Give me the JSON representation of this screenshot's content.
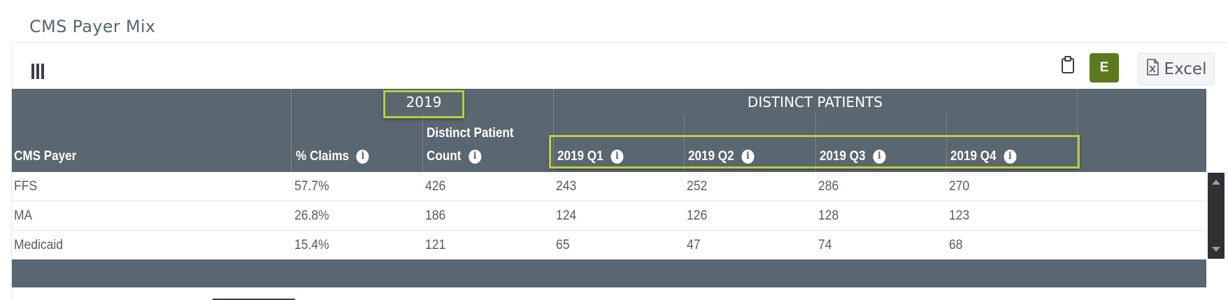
{
  "page": {
    "title": "CMS Payer Mix"
  },
  "toolbar": {
    "e_label": "E",
    "excel_label": "Excel"
  },
  "header": {
    "group_year": "2019",
    "group_patients": "DISTINCT PATIENTS",
    "columns": {
      "payer": "CMS Payer",
      "claims": "% Claims",
      "count_line1": "Distinct Patient",
      "count_line2": "Count",
      "q1": "2019 Q1",
      "q2": "2019 Q2",
      "q3": "2019 Q3",
      "q4": "2019 Q4"
    }
  },
  "rows": [
    {
      "payer": "FFS",
      "claims": "57.7%",
      "count": "426",
      "q1": "243",
      "q2": "252",
      "q3": "286",
      "q4": "270"
    },
    {
      "payer": "MA",
      "claims": "26.8%",
      "count": "186",
      "q1": "124",
      "q2": "126",
      "q3": "128",
      "q4": "123"
    },
    {
      "payer": "Medicaid",
      "claims": "15.4%",
      "count": "121",
      "q1": "65",
      "q2": "47",
      "q3": "74",
      "q4": "68"
    }
  ],
  "colors": {
    "header_bg": "#5a6670",
    "accent_green": "#5b7a1e",
    "highlight": "#b7cf3c"
  },
  "icons": [
    "columns-icon",
    "clipboard-icon",
    "info-icon",
    "excel-file-icon"
  ]
}
